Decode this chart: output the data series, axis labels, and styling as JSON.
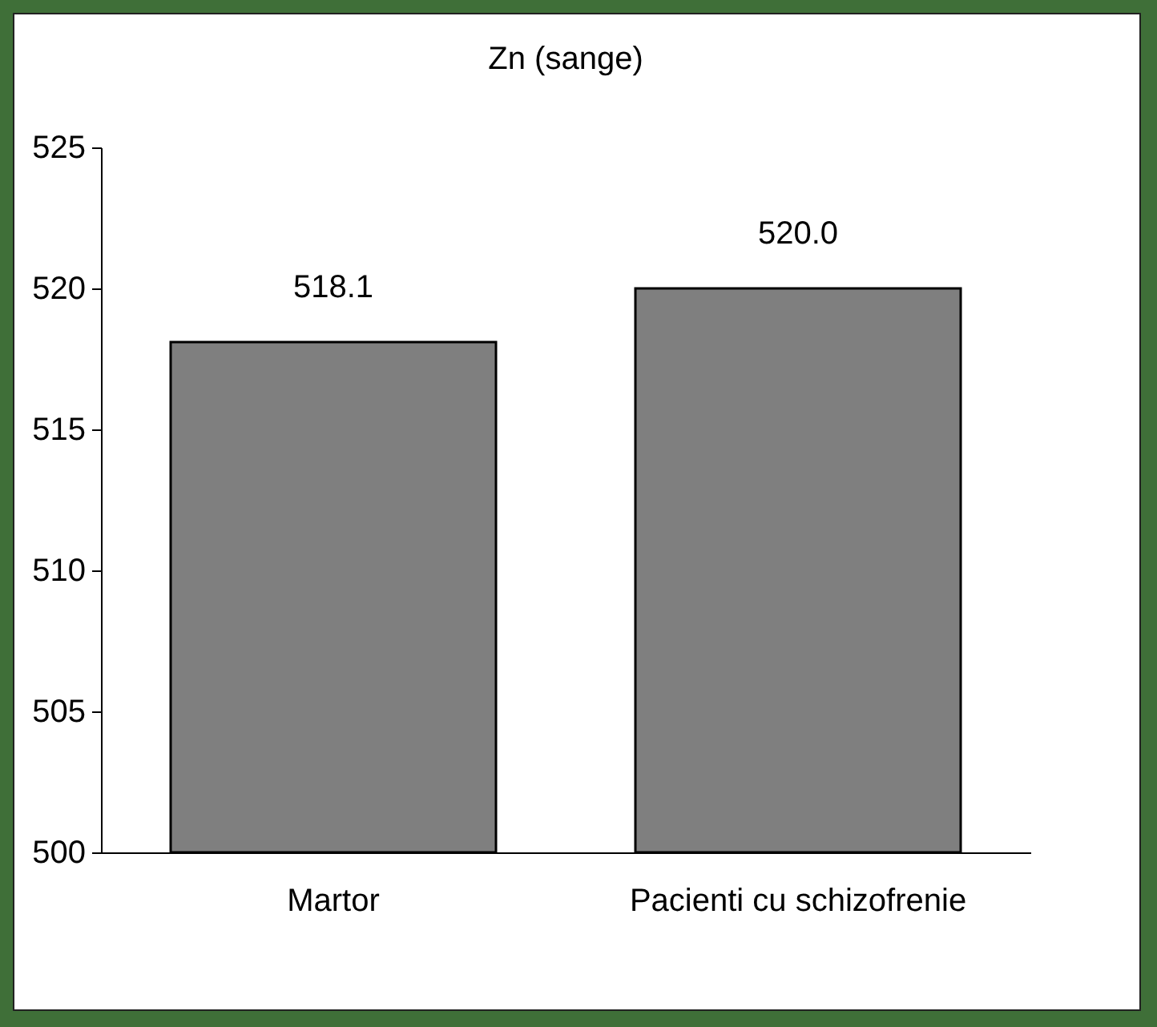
{
  "chart_data": {
    "type": "bar",
    "title": "Zn (sange)",
    "categories": [
      "Martor",
      "Pacienti cu schizofrenie"
    ],
    "values": [
      518.1,
      520.0
    ],
    "value_labels": [
      "518.1",
      "520.0"
    ],
    "color": "#7f7f7f",
    "ylim": [
      500,
      525
    ],
    "yticks": [
      500,
      505,
      510,
      515,
      520,
      525
    ],
    "grid": false
  }
}
